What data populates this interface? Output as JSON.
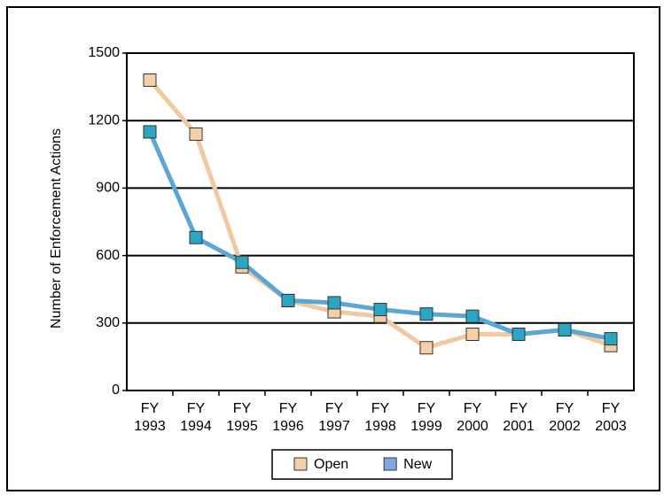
{
  "chart_data": {
    "type": "line",
    "y_label": "Number of Enforcement Actions",
    "categories": [
      "FY 1993",
      "FY 1994",
      "FY 1995",
      "FY 1996",
      "FY 1997",
      "FY 1998",
      "FY 1999",
      "FY 2000",
      "FY 2001",
      "FY 2002",
      "FY 2003"
    ],
    "series": [
      {
        "name": "Open",
        "color": "#f2c99e",
        "marker_color": "#f5cfa8",
        "values": [
          1380,
          1140,
          550,
          400,
          350,
          330,
          190,
          250,
          250,
          270,
          200
        ]
      },
      {
        "name": "New",
        "color": "#5aa6d6",
        "marker_color": "#2aa6c4",
        "legend_color": "#7fa8e2",
        "values": [
          1150,
          680,
          570,
          400,
          390,
          360,
          340,
          330,
          250,
          270,
          230
        ]
      }
    ],
    "ylim": [
      0,
      1500
    ],
    "yticks": [
      0,
      300,
      600,
      900,
      1200,
      1500
    ],
    "grid": true,
    "legend": "bottom"
  }
}
